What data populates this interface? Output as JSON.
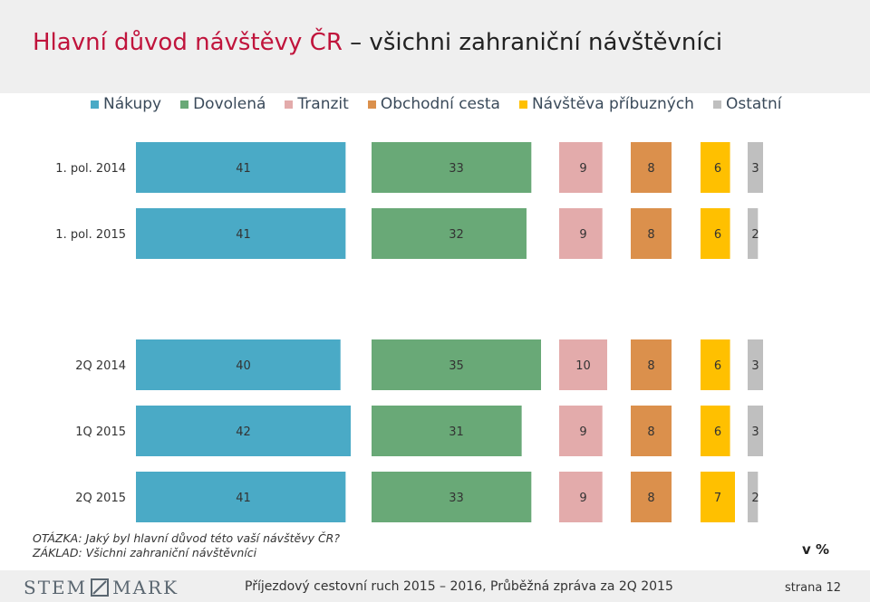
{
  "title": {
    "accent": "Hlavní důvod návštěvy ČR",
    "rest": " – všichni zahraniční návštěvníci"
  },
  "notes": {
    "question": "OTÁZKA: Jaký byl hlavní důvod této vaší návštěvy ČR?",
    "base": "ZÁKLAD: Všichni zahraniční návštěvníci"
  },
  "unit": "v %",
  "footer": {
    "logo_left": "STEM",
    "logo_right": "MARK",
    "text": "Příjezdový cestovní ruch 2015 – 2016, Průběžná zpráva za 2Q 2015",
    "page": "strana 12"
  },
  "chart_data": {
    "type": "bar",
    "orientation": "horizontal",
    "layout": "grouped panels (one segment per series, each in its own column)",
    "categories": [
      "1. pol. 2014",
      "1. pol. 2015",
      "2Q 2014",
      "1Q 2015",
      "2Q 2015"
    ],
    "series": [
      {
        "name": "Nákupy",
        "color": "#4aaac6",
        "values": [
          41,
          41,
          40,
          42,
          41
        ]
      },
      {
        "name": "Dovolená",
        "color": "#69a977",
        "values": [
          33,
          32,
          35,
          31,
          33
        ]
      },
      {
        "name": "Tranzit",
        "color": "#e3abab",
        "values": [
          9,
          9,
          10,
          9,
          9
        ]
      },
      {
        "name": "Obchodní cesta",
        "color": "#db904c",
        "values": [
          8,
          8,
          8,
          8,
          8
        ]
      },
      {
        "name": "Návštěva příbuzných",
        "color": "#ffc000",
        "values": [
          6,
          6,
          6,
          6,
          7
        ]
      },
      {
        "name": "Ostatní",
        "color": "#bfbfbf",
        "values": [
          3,
          2,
          3,
          3,
          2
        ]
      }
    ],
    "legend_position": "top",
    "data_labels": true,
    "grid": false
  }
}
